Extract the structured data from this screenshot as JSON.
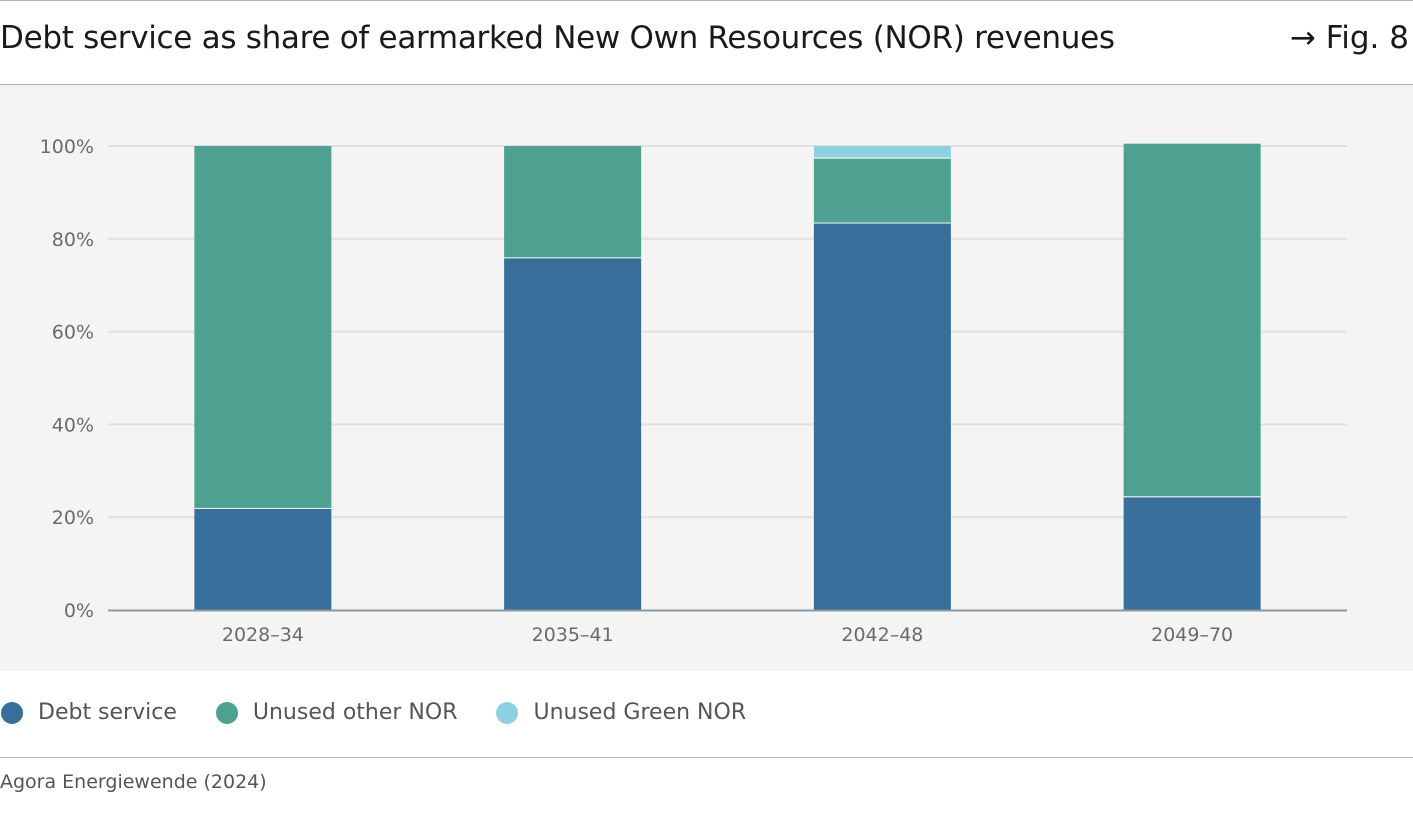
{
  "header": {
    "title": "Debt service as share of earmarked New Own Resources (NOR) revenues",
    "figure_ref": "→ Fig. 8"
  },
  "legend": [
    {
      "label": "Debt service",
      "color": "#386e9a"
    },
    {
      "label": "Unused other NOR",
      "color": "#4ea091"
    },
    {
      "label": "Unused Green NOR",
      "color": "#8fd0e0"
    }
  ],
  "footer": {
    "source": "Agora Energiewende (2024)"
  },
  "chart_data": {
    "type": "bar",
    "stacked": true,
    "categories": [
      "2028–34",
      "2035–41",
      "2042–48",
      "2049–70"
    ],
    "series": [
      {
        "name": "Debt service",
        "color": "#386e9a",
        "values": [
          22,
          76,
          83.5,
          24.5
        ]
      },
      {
        "name": "Unused other NOR",
        "color": "#4ea091",
        "values": [
          78,
          24,
          14,
          76
        ]
      },
      {
        "name": "Unused Green NOR",
        "color": "#8fd0e0",
        "values": [
          0,
          0,
          2.5,
          0
        ]
      }
    ],
    "yticks": [
      "0%",
      "20%",
      "40%",
      "60%",
      "80%",
      "100%"
    ],
    "ylim": [
      0,
      100
    ],
    "grid": true,
    "legend_position": "bottom"
  }
}
